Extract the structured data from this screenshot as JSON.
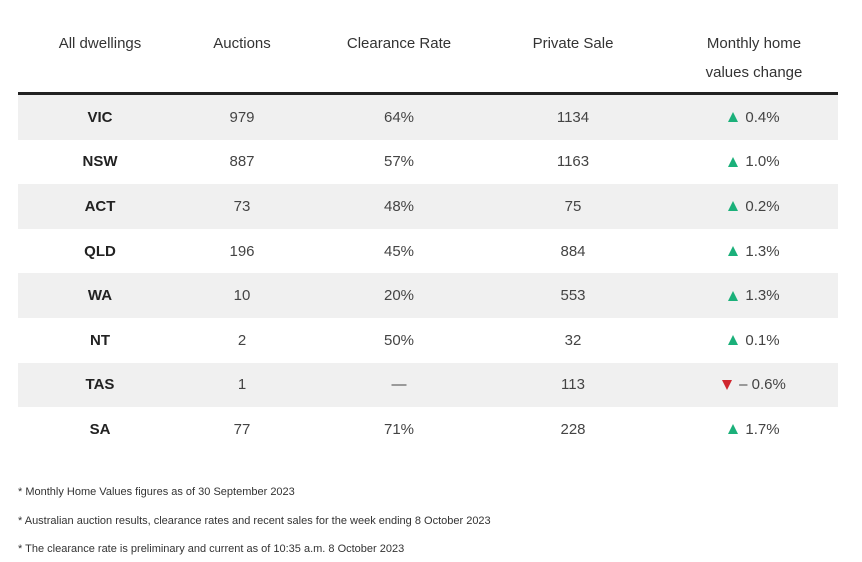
{
  "table": {
    "headers": {
      "region": "All dwellings",
      "auctions": "Auctions",
      "clearance": "Clearance Rate",
      "private": "Private Sale",
      "monthly_line1": "Monthly home",
      "monthly_line2": "values change"
    },
    "rows": [
      {
        "region": "VIC",
        "auctions": "979",
        "clearance": "64%",
        "private": "1134",
        "change": "0.4%",
        "direction": "up"
      },
      {
        "region": "NSW",
        "auctions": "887",
        "clearance": "57%",
        "private": "1163",
        "change": "1.0%",
        "direction": "up"
      },
      {
        "region": "ACT",
        "auctions": "73",
        "clearance": "48%",
        "private": "75",
        "change": "0.2%",
        "direction": "up"
      },
      {
        "region": "QLD",
        "auctions": "196",
        "clearance": "45%",
        "private": "884",
        "change": "1.3%",
        "direction": "up"
      },
      {
        "region": "WA",
        "auctions": "10",
        "clearance": "20%",
        "private": "553",
        "change": "1.3%",
        "direction": "up"
      },
      {
        "region": "NT",
        "auctions": "2",
        "clearance": "50%",
        "private": "32",
        "change": "0.1%",
        "direction": "up"
      },
      {
        "region": "TAS",
        "auctions": "1",
        "clearance": "—",
        "private": "113",
        "change": "– 0.6%",
        "direction": "down"
      },
      {
        "region": "SA",
        "auctions": "77",
        "clearance": "71%",
        "private": "228",
        "change": "1.7%",
        "direction": "up"
      }
    ],
    "colors": {
      "up": "#1bb07a",
      "down": "#d0262e",
      "shade": "#f0f0f0",
      "rule": "#222222"
    }
  },
  "notes": [
    "* Monthly Home Values figures as of 30 September 2023",
    "* Australian auction results, clearance rates and recent sales for the week ending 8 October 2023",
    "* The clearance rate is preliminary and current as of 10:35 a.m. 8 October 2023"
  ]
}
